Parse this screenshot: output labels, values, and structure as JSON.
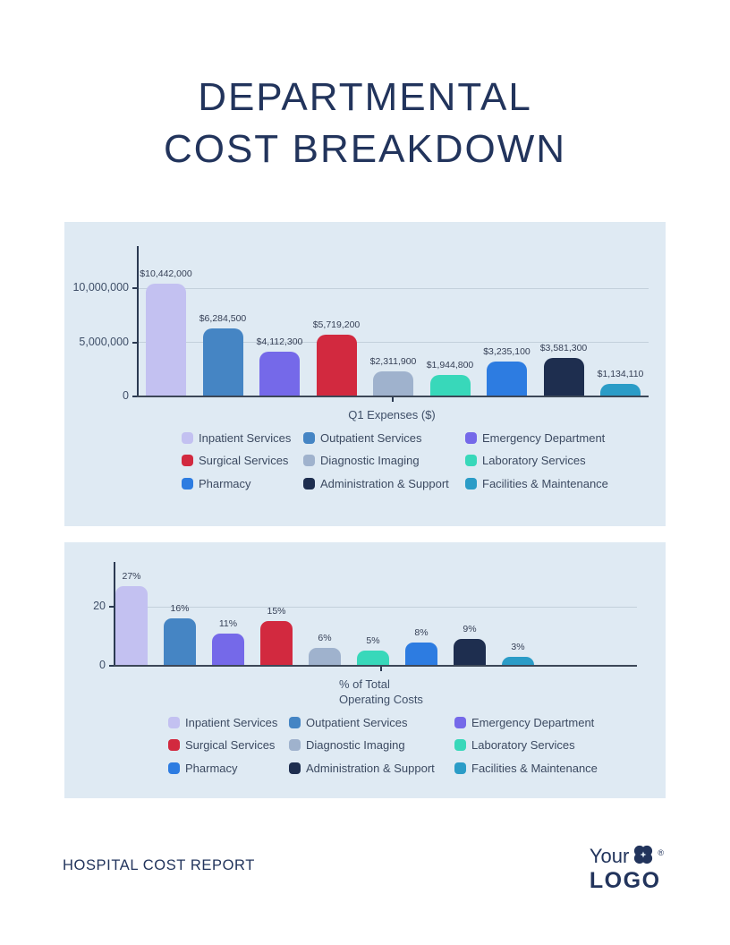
{
  "title": {
    "line1": "DEPARTMENTAL",
    "line2": "COST BREAKDOWN"
  },
  "departments": [
    {
      "name": "Inpatient Services",
      "color": "#c3c1f1"
    },
    {
      "name": "Outpatient Services",
      "color": "#4585c4"
    },
    {
      "name": "Emergency Department",
      "color": "#7569e9"
    },
    {
      "name": "Surgical Services",
      "color": "#d2293f"
    },
    {
      "name": "Diagnostic Imaging",
      "color": "#9fb2cd"
    },
    {
      "name": "Laboratory Services",
      "color": "#38d8ba"
    },
    {
      "name": "Pharmacy",
      "color": "#2d7ce1"
    },
    {
      "name": "Administration & Support",
      "color": "#1e2e4f"
    },
    {
      "name": "Facilities & Maintenance",
      "color": "#2b9cc7"
    }
  ],
  "chart_data": [
    {
      "type": "bar",
      "title": "",
      "xlabel": "Q1 Expenses ($)",
      "xlabel_lines": [
        "Q1 Expenses ($)"
      ],
      "ylabel": "",
      "categories": [
        "Inpatient Services",
        "Outpatient Services",
        "Emergency Department",
        "Surgical Services",
        "Diagnostic Imaging",
        "Laboratory Services",
        "Pharmacy",
        "Administration & Support",
        "Facilities & Maintenance"
      ],
      "values": [
        10442000,
        6284500,
        4112300,
        5719200,
        2311900,
        1944800,
        3235100,
        3581300,
        1134110
      ],
      "value_labels": [
        "$10,442,000",
        "$6,284,500",
        "$4,112,300",
        "$5,719,200",
        "$2,311,900",
        "$1,944,800",
        "$3,235,100",
        "$3,581,300",
        "$1,134,110"
      ],
      "ytick_values": [
        0,
        5000000,
        10000000
      ],
      "ytick_labels": [
        "0",
        "5,000,000",
        "10,000,000"
      ],
      "ylim": [
        0,
        13900000
      ],
      "grid": true,
      "legend_position": "bottom"
    },
    {
      "type": "bar",
      "title": "",
      "xlabel": "% of Total Operating Costs",
      "xlabel_lines": [
        "% of Total",
        "Operating Costs"
      ],
      "ylabel": "",
      "categories": [
        "Inpatient Services",
        "Outpatient Services",
        "Emergency Department",
        "Surgical Services",
        "Diagnostic Imaging",
        "Laboratory Services",
        "Pharmacy",
        "Administration & Support",
        "Facilities & Maintenance"
      ],
      "values": [
        27,
        16,
        11,
        15,
        6,
        5,
        8,
        9,
        3
      ],
      "value_labels": [
        "27%",
        "16%",
        "11%",
        "15%",
        "6%",
        "5%",
        "8%",
        "9%",
        "3%"
      ],
      "ytick_values": [
        0,
        20
      ],
      "ytick_labels": [
        "0",
        "20"
      ],
      "ylim": [
        0,
        35
      ],
      "grid": true,
      "legend_position": "bottom"
    }
  ],
  "footer": {
    "report_name": "HOSPITAL COST REPORT",
    "logo_line1": "Your",
    "logo_line2": "LOGO",
    "registered_mark": "®"
  }
}
